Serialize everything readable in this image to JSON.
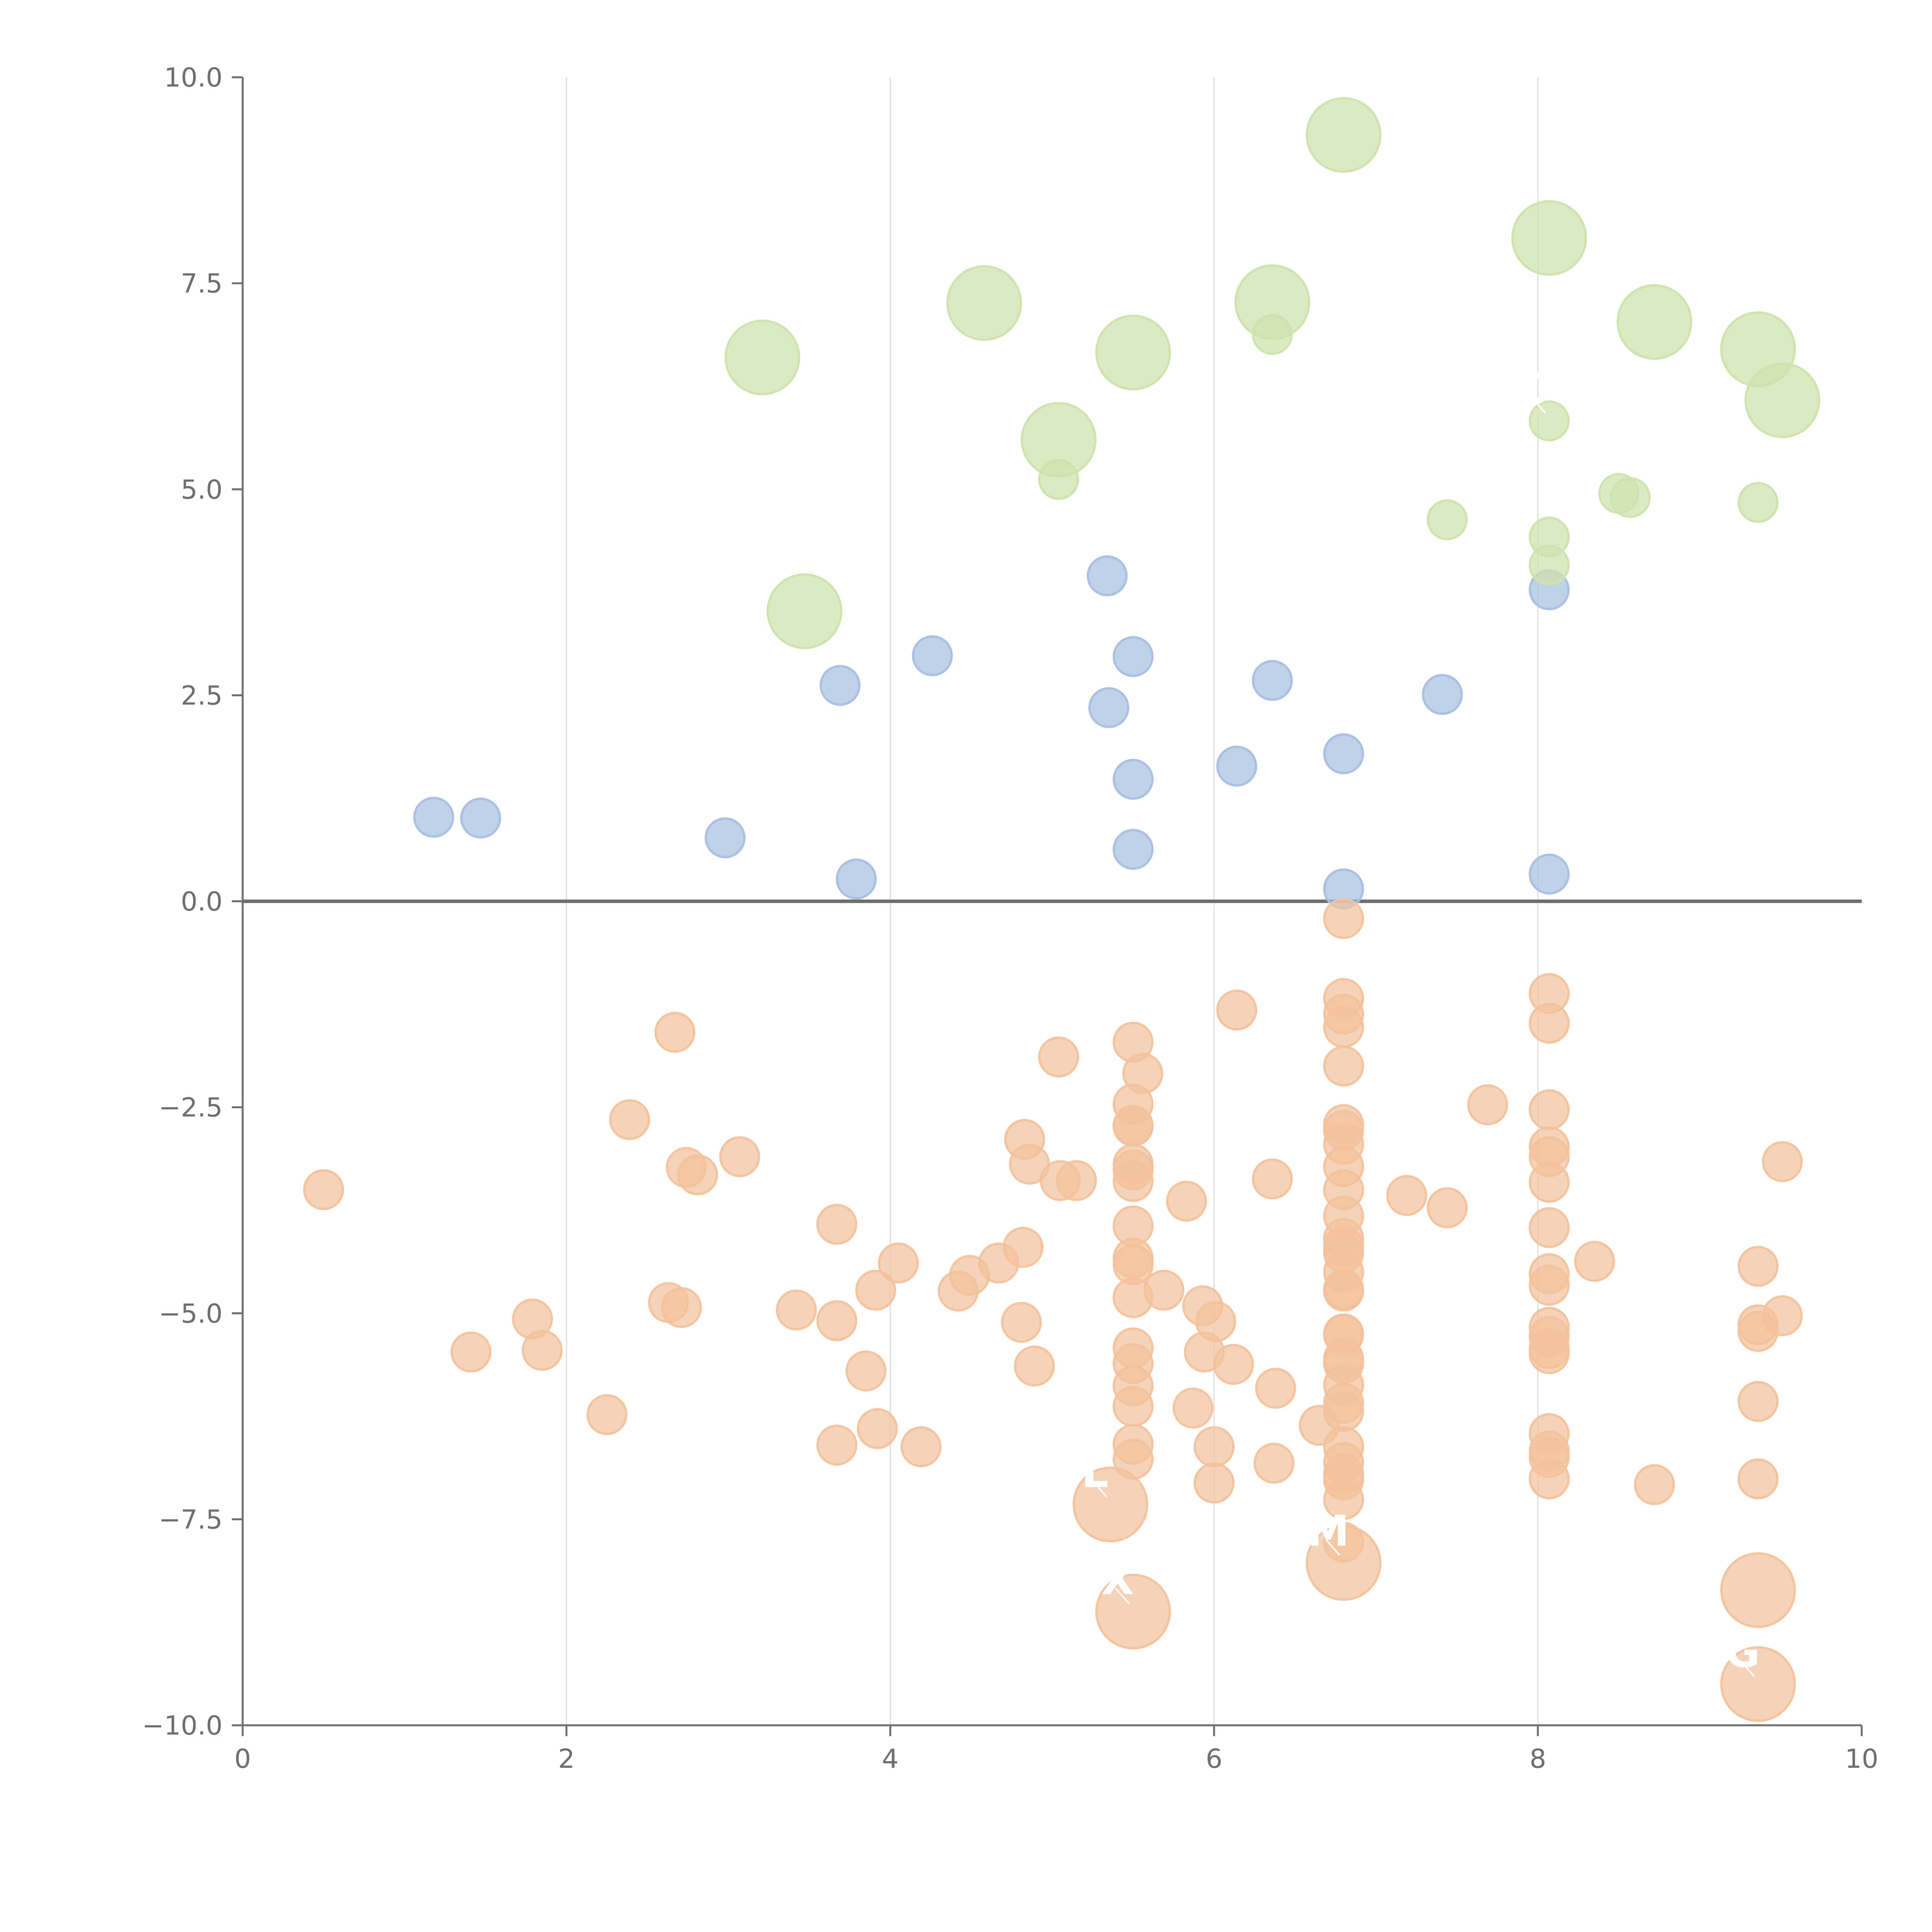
{
  "chart_data": {
    "type": "scatter",
    "title": "",
    "xlabel": "",
    "ylabel": "",
    "xlim": [
      0,
      10
    ],
    "ylim": [
      -10,
      10
    ],
    "x_ticks": [
      "0",
      "2",
      "4",
      "6",
      "8",
      "10"
    ],
    "y_ticks": [
      "10.0",
      "7.5",
      "5.0",
      "2.5",
      "0.0",
      "−2.5",
      "−5.0",
      "−7.5",
      "−10.0"
    ],
    "vertical_grid": true,
    "horizontal_grid": false,
    "zero_line": true,
    "colors": {
      "blue": "#a8bfe2",
      "green": "#cfe2ad",
      "orange": "#f2c29c"
    },
    "series": [
      {
        "color": "blue",
        "size": "small",
        "points": [
          [
            1.18,
            1.02
          ],
          [
            1.47,
            1.01
          ],
          [
            2.98,
            0.77
          ],
          [
            3.79,
            0.27
          ],
          [
            3.69,
            2.62
          ],
          [
            4.26,
            2.98
          ],
          [
            5.34,
            3.95
          ],
          [
            5.35,
            2.35
          ],
          [
            5.5,
            2.97
          ],
          [
            5.5,
            1.48
          ],
          [
            5.5,
            0.63
          ],
          [
            6.14,
            1.64
          ],
          [
            6.36,
            2.68
          ],
          [
            6.8,
            1.79
          ],
          [
            6.8,
            0.15
          ],
          [
            7.41,
            2.51
          ],
          [
            8.07,
            3.78
          ],
          [
            8.07,
            0.33
          ]
        ]
      },
      {
        "color": "green",
        "size": "small",
        "points": [
          [
            5.04,
            5.12
          ],
          [
            6.36,
            6.88
          ],
          [
            7.44,
            4.63
          ],
          [
            8.07,
            5.83
          ],
          [
            8.07,
            4.42
          ],
          [
            8.07,
            4.08
          ],
          [
            8.5,
            4.95
          ],
          [
            8.57,
            4.9
          ],
          [
            9.36,
            4.84
          ]
        ]
      },
      {
        "color": "green",
        "size": "large",
        "points": [
          [
            3.21,
            6.6
          ],
          [
            3.47,
            3.52
          ],
          [
            4.58,
            7.26
          ],
          [
            5.04,
            5.6
          ],
          [
            5.5,
            6.66
          ],
          [
            6.36,
            7.27
          ],
          [
            6.8,
            9.3
          ],
          [
            8.07,
            8.05
          ],
          [
            8.72,
            7.03
          ],
          [
            9.36,
            6.7
          ],
          [
            9.51,
            6.08
          ]
        ]
      },
      {
        "color": "orange",
        "size": "small",
        "points": [
          [
            0.5,
            -3.5
          ],
          [
            1.41,
            -5.47
          ],
          [
            1.79,
            -5.07
          ],
          [
            1.85,
            -5.45
          ],
          [
            2.25,
            -6.23
          ],
          [
            2.39,
            -2.65
          ],
          [
            2.63,
            -4.87
          ],
          [
            2.67,
            -1.59
          ],
          [
            2.71,
            -4.93
          ],
          [
            2.74,
            -3.23
          ],
          [
            2.81,
            -3.32
          ],
          [
            3.07,
            -3.1
          ],
          [
            3.42,
            -4.96
          ],
          [
            3.67,
            -3.92
          ],
          [
            3.67,
            -5.09
          ],
          [
            3.67,
            -6.6
          ],
          [
            3.85,
            -5.7
          ],
          [
            3.91,
            -4.72
          ],
          [
            3.92,
            -6.4
          ],
          [
            4.05,
            -4.39
          ],
          [
            4.19,
            -6.62
          ],
          [
            4.42,
            -4.73
          ],
          [
            4.49,
            -4.54
          ],
          [
            4.67,
            -4.39
          ],
          [
            4.81,
            -5.11
          ],
          [
            4.82,
            -4.2
          ],
          [
            4.83,
            -2.89
          ],
          [
            4.86,
            -3.19
          ],
          [
            4.89,
            -5.64
          ],
          [
            5.04,
            -1.89
          ],
          [
            5.05,
            -3.39
          ],
          [
            5.15,
            -3.39
          ],
          [
            5.5,
            -1.71
          ],
          [
            5.5,
            -2.46
          ],
          [
            5.5,
            -2.73
          ],
          [
            5.5,
            -2.72
          ],
          [
            5.5,
            -3.19
          ],
          [
            5.5,
            -3.26
          ],
          [
            5.5,
            -3.4
          ],
          [
            5.5,
            -3.94
          ],
          [
            5.5,
            -4.33
          ],
          [
            5.5,
            -4.41
          ],
          [
            5.5,
            -4.81
          ],
          [
            5.5,
            -5.42
          ],
          [
            5.5,
            -5.61
          ],
          [
            5.5,
            -5.88
          ],
          [
            5.5,
            -6.13
          ],
          [
            5.5,
            -6.59
          ],
          [
            5.5,
            -6.77
          ],
          [
            5.56,
            -2.09
          ],
          [
            5.69,
            -4.72
          ],
          [
            5.83,
            -3.64
          ],
          [
            5.87,
            -6.15
          ],
          [
            5.93,
            -4.91
          ],
          [
            5.94,
            -5.47
          ],
          [
            6.0,
            -6.62
          ],
          [
            6.0,
            -7.06
          ],
          [
            6.01,
            -5.1
          ],
          [
            6.12,
            -5.62
          ],
          [
            6.14,
            -1.32
          ],
          [
            6.36,
            -3.37
          ],
          [
            6.37,
            -6.82
          ],
          [
            6.38,
            -5.91
          ],
          [
            6.65,
            -6.36
          ],
          [
            6.8,
            -0.21
          ],
          [
            6.8,
            -1.18
          ],
          [
            6.8,
            -1.37
          ],
          [
            6.8,
            -1.53
          ],
          [
            6.8,
            -2.0
          ],
          [
            6.8,
            -2.71
          ],
          [
            6.8,
            -2.78
          ],
          [
            6.8,
            -2.95
          ],
          [
            6.8,
            -3.22
          ],
          [
            6.8,
            -3.5
          ],
          [
            6.8,
            -3.82
          ],
          [
            6.8,
            -4.09
          ],
          [
            6.8,
            -4.19
          ],
          [
            6.8,
            -4.27
          ],
          [
            6.8,
            -4.5
          ],
          [
            6.8,
            -4.71
          ],
          [
            6.8,
            -4.73
          ],
          [
            6.8,
            -5.25
          ],
          [
            6.8,
            -5.26
          ],
          [
            6.8,
            -5.55
          ],
          [
            6.8,
            -5.61
          ],
          [
            6.8,
            -5.87
          ],
          [
            6.8,
            -6.09
          ],
          [
            6.8,
            -6.19
          ],
          [
            6.8,
            -6.62
          ],
          [
            6.8,
            -6.81
          ],
          [
            6.8,
            -6.95
          ],
          [
            6.8,
            -7.02
          ],
          [
            6.8,
            -7.26
          ],
          [
            6.8,
            -7.78
          ],
          [
            7.19,
            -3.57
          ],
          [
            7.44,
            -3.72
          ],
          [
            7.69,
            -2.47
          ],
          [
            8.07,
            -1.12
          ],
          [
            8.07,
            -1.48
          ],
          [
            8.07,
            -2.53
          ],
          [
            8.07,
            -2.98
          ],
          [
            8.07,
            -3.1
          ],
          [
            8.07,
            -3.41
          ],
          [
            8.07,
            -3.96
          ],
          [
            8.07,
            -4.52
          ],
          [
            8.07,
            -4.66
          ],
          [
            8.07,
            -5.17
          ],
          [
            8.07,
            -5.28
          ],
          [
            8.07,
            -5.43
          ],
          [
            8.07,
            -5.49
          ],
          [
            8.07,
            -6.46
          ],
          [
            8.07,
            -6.67
          ],
          [
            8.07,
            -6.75
          ],
          [
            8.07,
            -7.01
          ],
          [
            8.35,
            -4.37
          ],
          [
            8.72,
            -7.08
          ],
          [
            9.36,
            -4.43
          ],
          [
            9.36,
            -5.14
          ],
          [
            9.36,
            -5.22
          ],
          [
            9.36,
            -6.07
          ],
          [
            9.36,
            -7.01
          ],
          [
            9.51,
            -3.16
          ],
          [
            9.51,
            -5.03
          ]
        ]
      },
      {
        "color": "orange",
        "size": "large",
        "points": [
          [
            5.36,
            -7.32
          ],
          [
            5.5,
            -8.62
          ],
          [
            6.8,
            -8.03
          ],
          [
            9.36,
            -8.36
          ],
          [
            9.36,
            -9.5
          ]
        ]
      }
    ],
    "annotations": [
      {
        "text": "O",
        "x": 8.07,
        "y": 5.83
      },
      {
        "text": "L",
        "x": 5.36,
        "y": -7.32
      },
      {
        "text": "M",
        "x": 6.8,
        "y": -8.03
      },
      {
        "text": "X",
        "x": 5.5,
        "y": -8.62
      },
      {
        "text": "G",
        "x": 9.36,
        "y": -9.5
      }
    ]
  }
}
